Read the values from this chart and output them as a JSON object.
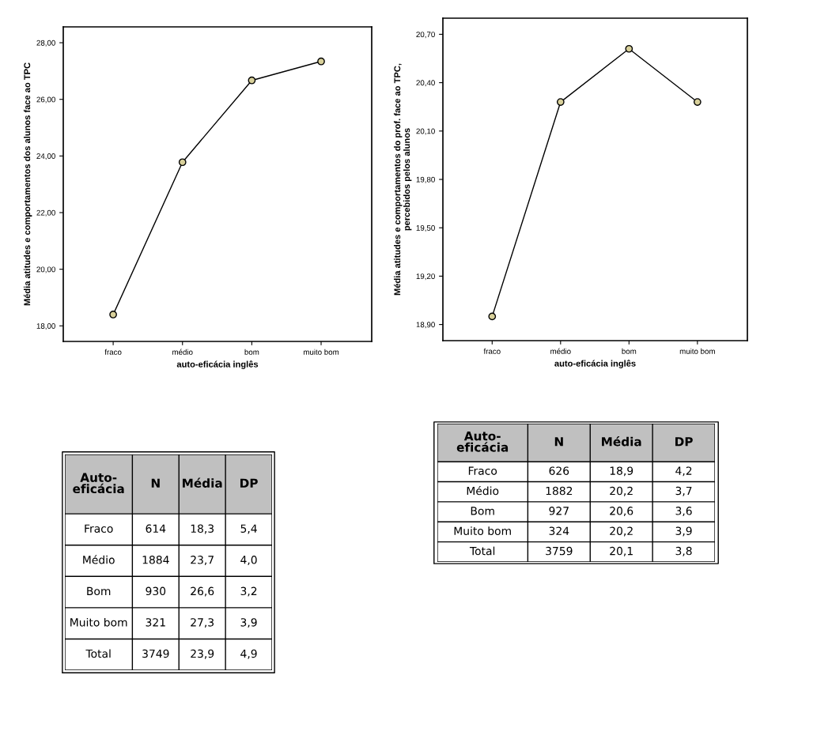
{
  "chart_data": [
    {
      "type": "line",
      "xlabel": "auto-eficácia inglês",
      "ylabel": "Média atitudes e comportamentos dos alunos face ao TPC",
      "categories": [
        "fraco",
        "médio",
        "bom",
        "muito bom"
      ],
      "series": [
        {
          "color": "#d8d09a",
          "values": [
            18.4,
            23.78,
            26.67,
            27.34
          ]
        }
      ],
      "ylim": [
        17.45,
        28.56
      ],
      "yticks": [
        {
          "value": 18,
          "label": "18,00"
        },
        {
          "value": 20,
          "label": "20,00"
        },
        {
          "value": 22,
          "label": "22,00"
        },
        {
          "value": 24,
          "label": "24,00"
        },
        {
          "value": 26,
          "label": "26,00"
        },
        {
          "value": 28,
          "label": "28,00"
        }
      ],
      "marker": "circle",
      "line_style": "solid"
    },
    {
      "type": "line",
      "xlabel": "auto-eficácia inglês",
      "ylabel": "Média atitudes e comportamentos do prof. face ao TPC,\npercebidos pelos alunos",
      "categories": [
        "fraco",
        "médio",
        "bom",
        "muito bom"
      ],
      "series": [
        {
          "color": "#d8d09a",
          "values": [
            18.95,
            20.28,
            20.61,
            20.28
          ]
        }
      ],
      "ylim": [
        18.8,
        20.8
      ],
      "yticks": [
        {
          "value": 18.9,
          "label": "18,90"
        },
        {
          "value": 19.2,
          "label": "19,20"
        },
        {
          "value": 19.5,
          "label": "19,50"
        },
        {
          "value": 19.8,
          "label": "19,80"
        },
        {
          "value": 20.1,
          "label": "20,10"
        },
        {
          "value": 20.4,
          "label": "20,40"
        },
        {
          "value": 20.7,
          "label": "20,70"
        }
      ],
      "marker": "circle",
      "line_style": "solid"
    },
    {
      "type": "other",
      "categories": [
        "Auto-\neficácia",
        "N",
        "Média",
        "DP"
      ],
      "y_categories": [
        "Fraco",
        "Médio",
        "Bom",
        "Muito bom",
        "Total"
      ],
      "cell_labels": [
        [
          "614",
          "18,3",
          "5,4"
        ],
        [
          "1884",
          "23,7",
          "4,0"
        ],
        [
          "930",
          "26,6",
          "3,2"
        ],
        [
          "321",
          "27,3",
          "3,9"
        ],
        [
          "3749",
          "23,9",
          "4,9"
        ]
      ]
    },
    {
      "type": "other",
      "categories": [
        "Auto-\neficácia",
        "N",
        "Média",
        "DP"
      ],
      "y_categories": [
        "Fraco",
        "Médio",
        "Bom",
        "Muito bom",
        "Total"
      ],
      "cell_labels": [
        [
          "626",
          "18,9",
          "4,2"
        ],
        [
          "1882",
          "20,2",
          "3,7"
        ],
        [
          "927",
          "20,6",
          "3,6"
        ],
        [
          "324",
          "20,2",
          "3,9"
        ],
        [
          "3759",
          "20,1",
          "3,8"
        ]
      ]
    }
  ]
}
